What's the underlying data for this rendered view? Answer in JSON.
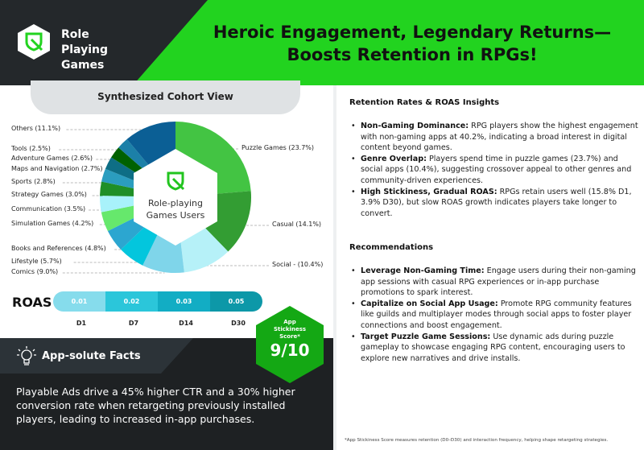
{
  "header": {
    "brand": "Role Playing Games",
    "title_line1": "Heroic Engagement, Legendary Returns—",
    "title_line2": "Boosts Retention in RPGs!",
    "logo_icon": "shield-sword-icon"
  },
  "cohort": {
    "title": "Synthesized Cohort View",
    "center_line1": "Role-playing",
    "center_line2": "Games Users"
  },
  "chart_data": {
    "type": "pie",
    "title": "Synthesized Cohort View",
    "slices": [
      {
        "label": "Puzzle Games (23.7%)",
        "value": 23.7,
        "color": "#43c443"
      },
      {
        "label": "Casual (14.1%)",
        "value": 14.1,
        "color": "#339d33"
      },
      {
        "label": "Social - (10.4%)",
        "value": 10.4,
        "color": "#b6f1f8"
      },
      {
        "label": "Comics (9.0%)",
        "value": 9.0,
        "color": "#7fd5ea"
      },
      {
        "label": "Lifestyle (5.7%)",
        "value": 5.7,
        "color": "#03c6dd"
      },
      {
        "label": "Books and References (4.8%)",
        "value": 4.8,
        "color": "#2ca6d0"
      },
      {
        "label": "Simulation Games (4.2%)",
        "value": 4.2,
        "color": "#66e86c"
      },
      {
        "label": "Communication (3.5%)",
        "value": 3.5,
        "color": "#a8f2fa"
      },
      {
        "label": "Strategy Games (3.0%)",
        "value": 3.0,
        "color": "#1f8f27"
      },
      {
        "label": "Sports (2.8%)",
        "value": 2.8,
        "color": "#2b9dbf"
      },
      {
        "label": "Maps and Navigation (2.7%)",
        "value": 2.7,
        "color": "#0e6e85"
      },
      {
        "label": "Adventure Games (2.6%)",
        "value": 2.6,
        "color": "#006100"
      },
      {
        "label": "Tools (2.5%)",
        "value": 2.5,
        "color": "#1c80a8"
      },
      {
        "label": "Others (11.1%)",
        "value": 11.1,
        "color": "#0b5f95"
      }
    ]
  },
  "roas": {
    "label": "ROAS",
    "values": [
      "0.01",
      "0.02",
      "0.03",
      "0.05"
    ],
    "days": [
      "D1",
      "D7",
      "D14",
      "D30"
    ],
    "colors": [
      "#86dcec",
      "#2bc6da",
      "#12adc4",
      "#0d98a8"
    ]
  },
  "score": {
    "l1": "App",
    "l2": "Stickiness",
    "l3": "Score*",
    "value": "9/10"
  },
  "facts": {
    "title": "App-solute Facts",
    "text": "Playable Ads drive a 45% higher CTR and a 30% higher conversion rate when retargeting previously installed players, leading to increased in-app purchases."
  },
  "insights": {
    "title": "Retention Rates & ROAS Insights",
    "items": [
      {
        "b": "Non-Gaming Dominance:",
        "t": " RPG players show the highest engagement with non-gaming apps at 40.2%, indicating a broad interest in digital content beyond games."
      },
      {
        "b": "Genre Overlap:",
        "t": " Players spend time in puzzle games (23.7%) and social apps (10.4%), suggesting crossover appeal to other genres and community-driven experiences."
      },
      {
        "b": "High Stickiness, Gradual ROAS:",
        "t": " RPGs retain users well (15.8% D1, 3.9% D30), but slow ROAS growth indicates players take longer to convert."
      }
    ]
  },
  "recs": {
    "title": "Recommendations",
    "items": [
      {
        "b": "Leverage Non-Gaming Time:",
        "t": " Engage users during their non-gaming app sessions with casual RPG experiences or in-app purchase promotions to spark interest."
      },
      {
        "b": "Capitalize on Social App Usage:",
        "t": " Promote RPG community features like guilds and multiplayer modes through social apps to foster player connections and boost engagement."
      },
      {
        "b": "Target Puzzle Game Sessions:",
        "t": " Use dynamic ads during puzzle gameplay to showcase engaging RPG content, encouraging users to explore new narratives and drive installs."
      }
    ]
  },
  "footnote": "*App Stickiness Score measures retention (D0–D30) and interaction frequency, helping shape retargeting strategies."
}
